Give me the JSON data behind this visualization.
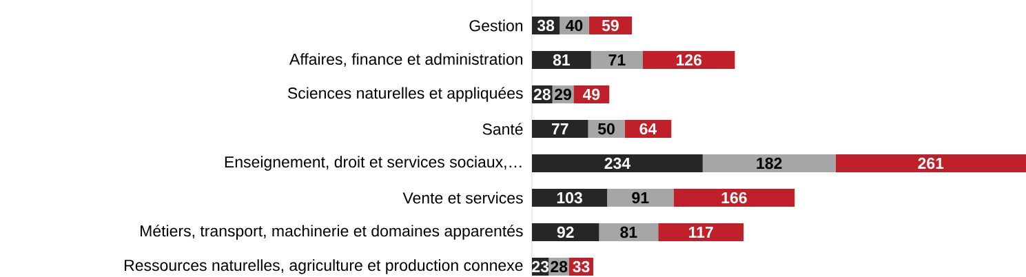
{
  "chart_data": {
    "type": "bar",
    "orientation": "horizontal",
    "stacked": true,
    "data_labels": true,
    "tick_labels": "y",
    "categories": [
      "Gestion",
      "Affaires, finance et administration",
      "Sciences naturelles et appliquées",
      "Santé",
      "Enseignement, droit et services sociaux,…",
      "Vente et services",
      "Métiers, transport, machinerie et domaines apparentés",
      "Ressources naturelles, agriculture et production connexe"
    ],
    "series": [
      {
        "color": "#262626",
        "values": [
          38,
          81,
          28,
          77,
          234,
          103,
          92,
          23
        ]
      },
      {
        "color": "#a6a6a6",
        "values": [
          40,
          71,
          29,
          50,
          182,
          91,
          81,
          28
        ]
      },
      {
        "color": "#c0202a",
        "values": [
          59,
          126,
          49,
          64,
          261,
          166,
          117,
          33
        ]
      }
    ]
  }
}
